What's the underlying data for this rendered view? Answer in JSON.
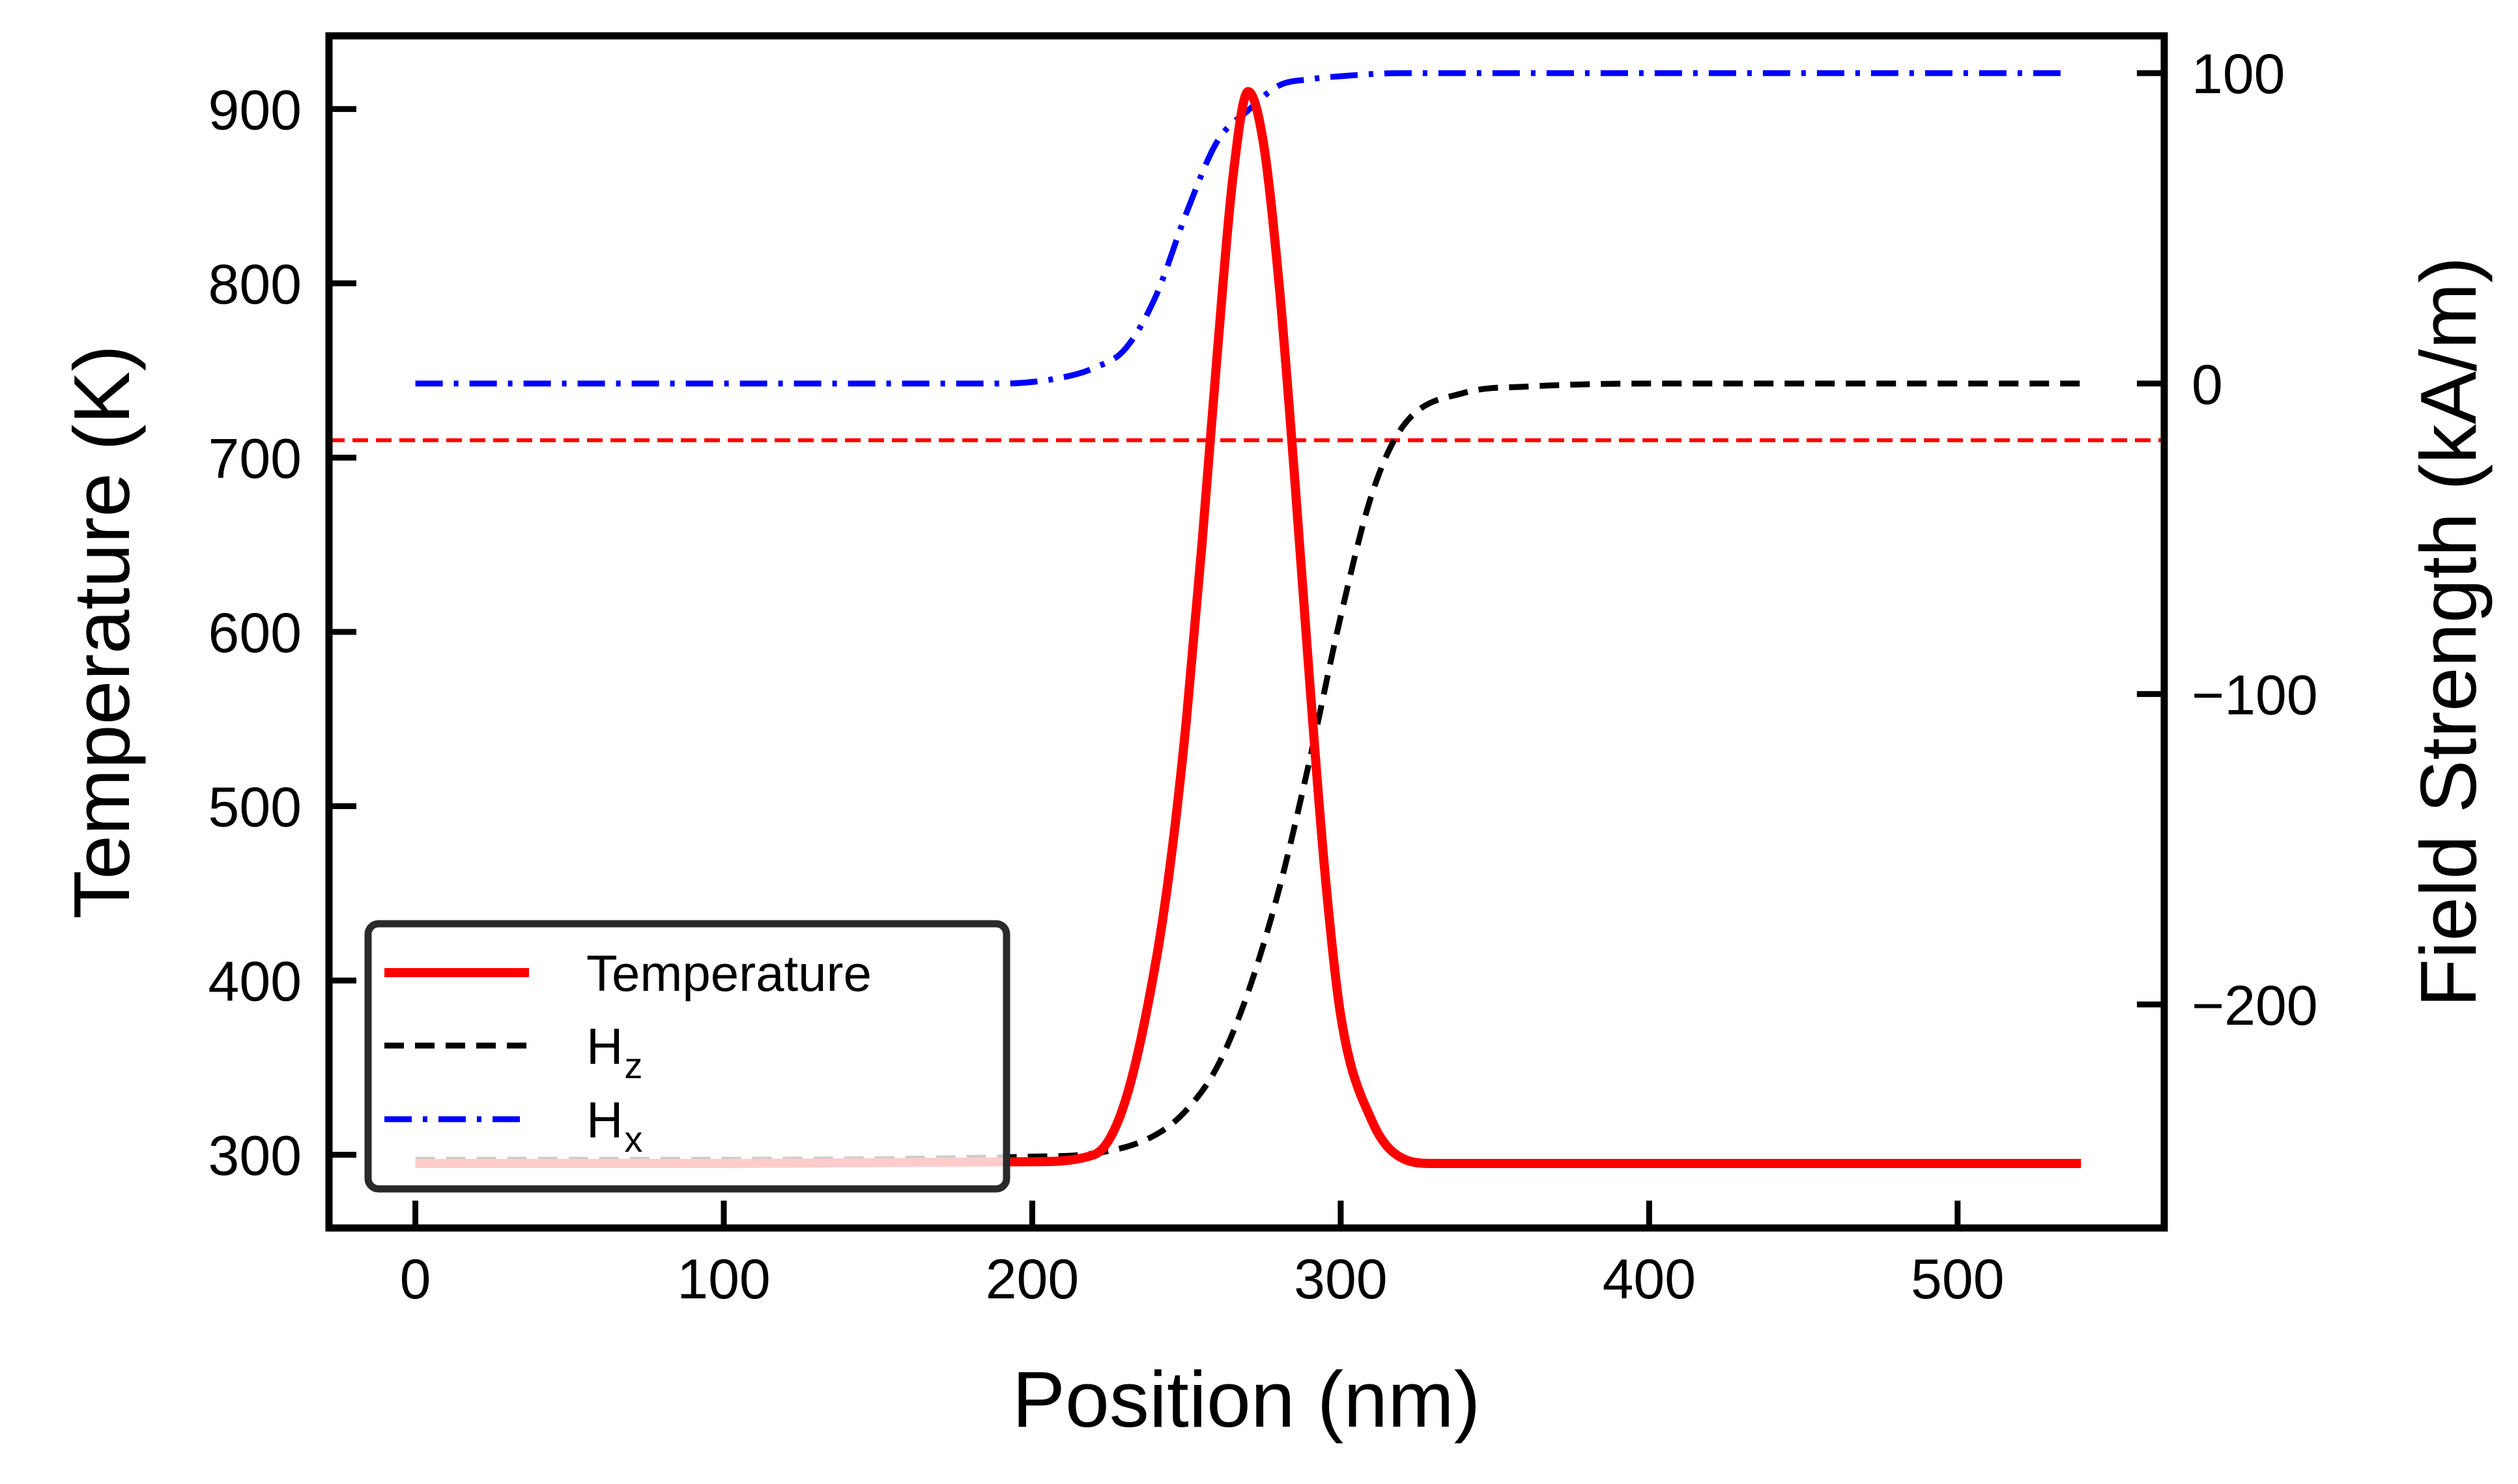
{
  "chart_data": {
    "type": "line",
    "title": "",
    "xlabel": "Position (nm)",
    "ylabel_left": "Temperature (K)",
    "ylabel_right": "Field Strength (kA/m)",
    "xlim": [
      -28,
      567
    ],
    "ylim_left": [
      258,
      942
    ],
    "ylim_right": [
      -272,
      112
    ],
    "xticks": [
      0,
      100,
      200,
      300,
      400,
      500
    ],
    "yticks_left": [
      300,
      400,
      500,
      600,
      700,
      800,
      900
    ],
    "yticks_right": [
      -200,
      -100,
      0,
      100
    ],
    "ytick_labels_right": [
      "−200",
      "−100",
      "0",
      "100"
    ],
    "colors": {
      "temperature": "#ff0000",
      "hz": "#000000",
      "hx": "#0000ff",
      "threshold": "#ff0000"
    },
    "series": [
      {
        "name": "Temperature",
        "axis": "left",
        "style": "solid",
        "x": [
          0,
          100,
          200,
          220,
          230,
          240,
          245,
          250,
          255,
          260,
          265,
          270,
          275,
          280,
          285,
          290,
          295,
          300,
          310,
          320,
          330,
          400,
          540
        ],
        "y": [
          295,
          295,
          296,
          300,
          330,
          410,
          470,
          550,
          650,
          760,
          860,
          910,
          880,
          800,
          690,
          570,
          460,
          380,
          320,
          298,
          295,
          295,
          295
        ]
      },
      {
        "name": "Hz",
        "axis": "right",
        "style": "dashed",
        "x": [
          0,
          100,
          200,
          220,
          240,
          250,
          260,
          270,
          280,
          290,
          300,
          310,
          320,
          340,
          360,
          400,
          540
        ],
        "y": [
          -250,
          -250,
          -249,
          -248,
          -242,
          -234,
          -220,
          -196,
          -163,
          -121,
          -75,
          -36,
          -14,
          -3,
          -1,
          0,
          0
        ]
      },
      {
        "name": "Hx",
        "axis": "right",
        "style": "dashdot",
        "x": [
          0,
          100,
          190,
          210,
          220,
          230,
          240,
          250,
          260,
          270,
          280,
          290,
          300,
          320,
          340,
          400,
          535
        ],
        "y": [
          0,
          0,
          0,
          2,
          5,
          11,
          28,
          55,
          78,
          88,
          96,
          98,
          99,
          100,
          100,
          100,
          100
        ]
      }
    ],
    "reference_lines": [
      {
        "axis": "left",
        "y": 710,
        "style": "dashed",
        "color": "#ff0000"
      }
    ],
    "legend": {
      "position": "lower-left",
      "entries": [
        {
          "label": "Temperature",
          "sub": ""
        },
        {
          "label": "H",
          "sub": "z"
        },
        {
          "label": "H",
          "sub": "x"
        }
      ]
    }
  }
}
